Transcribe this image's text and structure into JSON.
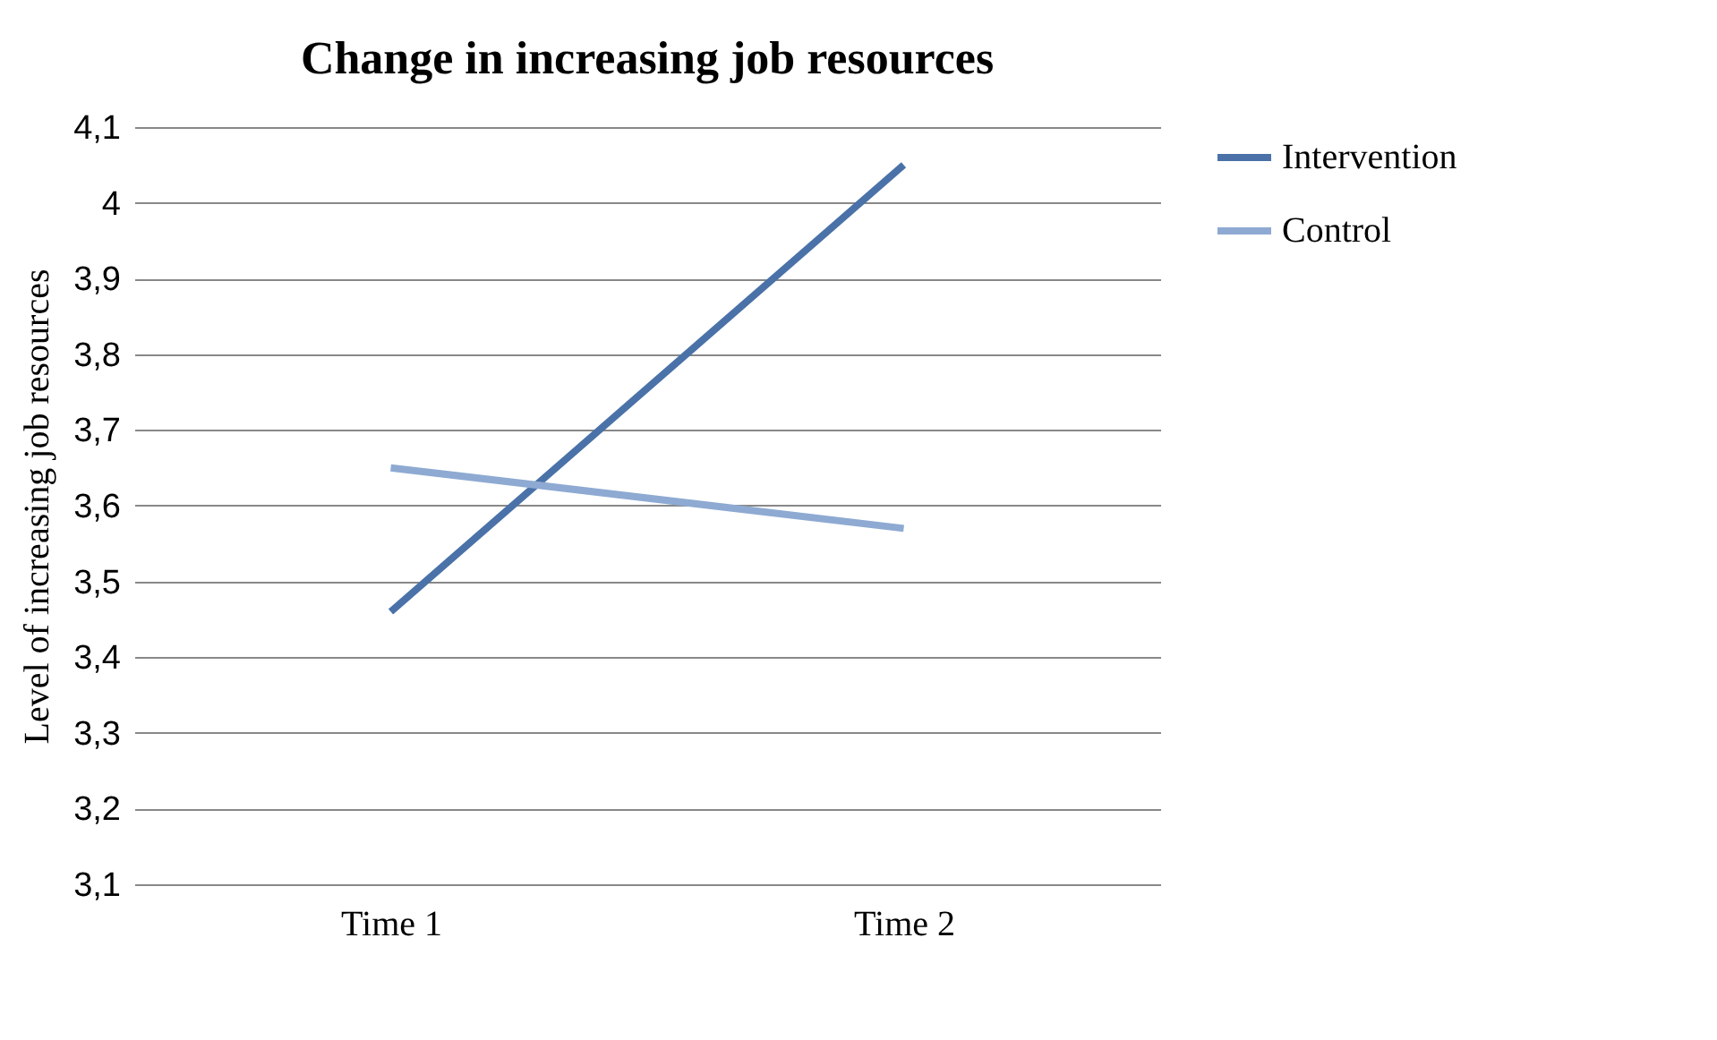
{
  "chart_data": {
    "type": "line",
    "title": "Change in increasing job resources",
    "ylabel": "Level of increasing job resources",
    "categories": [
      "Time 1",
      "Time 2"
    ],
    "series": [
      {
        "name": "Intervention",
        "color": "#4a72a8",
        "values": [
          3.46,
          4.05
        ]
      },
      {
        "name": "Control",
        "color": "#8eaad2",
        "values": [
          3.65,
          3.57
        ]
      }
    ],
    "ylim": [
      3.1,
      4.1
    ],
    "yticks": [
      {
        "value": 3.1,
        "label": "3,1"
      },
      {
        "value": 3.2,
        "label": "3,2"
      },
      {
        "value": 3.3,
        "label": "3,3"
      },
      {
        "value": 3.4,
        "label": "3,4"
      },
      {
        "value": 3.5,
        "label": "3,5"
      },
      {
        "value": 3.6,
        "label": "3,6"
      },
      {
        "value": 3.7,
        "label": "3,7"
      },
      {
        "value": 3.8,
        "label": "3,8"
      },
      {
        "value": 3.9,
        "label": "3,9"
      },
      4,
      {
        "value": 4.1,
        "label": "4,1"
      }
    ],
    "grid": "y",
    "legend": "right",
    "marker": "none",
    "line_style": "solid"
  }
}
